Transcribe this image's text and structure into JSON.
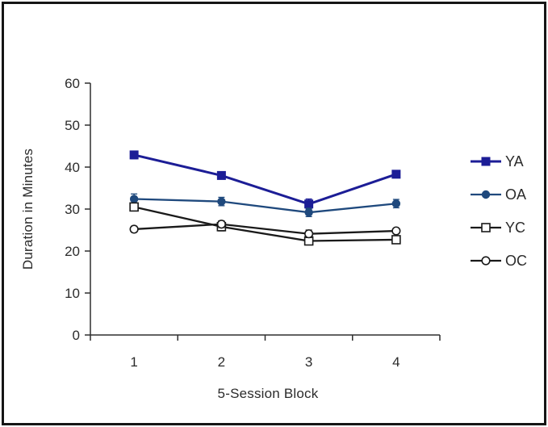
{
  "chart_data": {
    "type": "line",
    "title": "",
    "xlabel": "5-Session Block",
    "ylabel": "Duration in Minutes",
    "categories": [
      "1",
      "2",
      "3",
      "4"
    ],
    "ylim": [
      0,
      60
    ],
    "yticks": [
      0,
      10,
      20,
      30,
      40,
      50,
      60
    ],
    "grid": false,
    "legend_position": "right",
    "background_color": "#ffffff",
    "frame_color": "#151515",
    "axis_color": "#2e2e2e",
    "series": [
      {
        "name": "YA",
        "color": "#1c1d96",
        "marker": "filled-square",
        "values": [
          42.9,
          38.0,
          31.2,
          38.3
        ],
        "errors": [
          0.9,
          0.7,
          1.2,
          0.8
        ]
      },
      {
        "name": "OA",
        "color": "#1f497d",
        "marker": "filled-circle",
        "values": [
          32.4,
          31.8,
          29.2,
          31.3
        ],
        "errors": [
          1.2,
          1.0,
          1.0,
          1.0
        ]
      },
      {
        "name": "YC",
        "color": "#1a1a1a",
        "marker": "open-square",
        "values": [
          30.5,
          25.8,
          22.4,
          22.7
        ],
        "errors": [
          0.8,
          1.0,
          0.9,
          0.7
        ]
      },
      {
        "name": "OC",
        "color": "#1a1a1a",
        "marker": "open-circle",
        "values": [
          25.2,
          26.4,
          24.1,
          24.8
        ],
        "errors": [
          0.7,
          0.8,
          0.9,
          0.6
        ]
      }
    ]
  }
}
